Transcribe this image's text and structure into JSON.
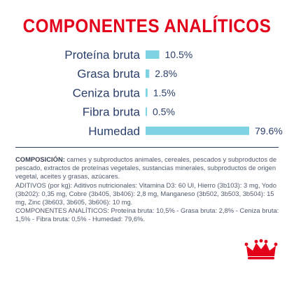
{
  "title": "COMPONENTES ANALÍTICOS",
  "colors": {
    "title": "#e2001a",
    "bar": "#7ed3e3",
    "category_text": "#2b3f6b",
    "value_text": "#2b3f6b",
    "logo": "#e2001a"
  },
  "chart_data": {
    "type": "bar",
    "orientation": "horizontal",
    "categories": [
      "Proteína bruta",
      "Grasa bruta",
      "Ceniza bruta",
      "Fibra bruta",
      "Humedad"
    ],
    "values": [
      10.5,
      2.8,
      1.5,
      0.5,
      79.6
    ],
    "value_labels": [
      "10.5%",
      "2.8%",
      "1.5%",
      "0.5%",
      "79.6%"
    ],
    "title": "COMPONENTES ANALÍTICOS",
    "xlim": [
      0,
      80
    ],
    "grid": false,
    "legend": "none"
  },
  "composition": {
    "composition_label": "COMPOSICIÓN:",
    "composition_text": " carnes y subproductos animales, cereales, pescados y subproductos de pescado, extractos de proteínas vegetales, sustancias minerales, subproductos de origen vegetal, aceites y grasas, azúcares.",
    "additives_text": "ADITIVOS (por kg): Aditivos nutricionales: Vitamina D3: 60 UI, Hierro (3b103): 3 mg, Yodo (3b202): 0,35 mg, Cobre (3b405, 3b406): 2,8 mg, Manganeso (3b502, 3b503, 3b504): 15 mg, Zinc (3b603, 3b605, 3b606): 10 mg.",
    "analytics_text": "COMPONENTES ANALÍTICOS: Proteína bruta: 10,5% - Grasa bruta: 2,8% - Ceniza bruta: 1,5% - Fibra bruta: 0,5% - Humedad: 79,6%."
  },
  "logo": {
    "icon": "royal-crown-icon"
  }
}
